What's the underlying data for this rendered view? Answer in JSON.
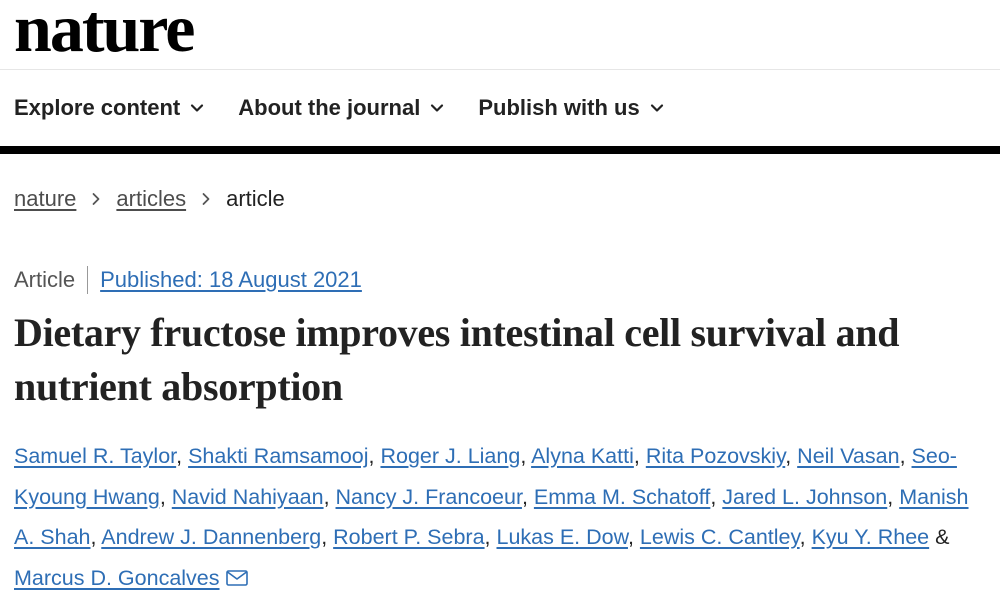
{
  "brand": {
    "logo": "nature"
  },
  "nav": {
    "items": [
      {
        "label": "Explore content",
        "icon": "chevron-down-icon"
      },
      {
        "label": "About the journal",
        "icon": "chevron-down-icon"
      },
      {
        "label": "Publish with us",
        "icon": "chevron-down-icon"
      }
    ]
  },
  "breadcrumb": {
    "items": [
      "nature",
      "articles"
    ],
    "current": "article"
  },
  "article": {
    "type": "Article",
    "published": "Published: 18 August 2021",
    "title": "Dietary fructose improves intestinal cell survival and nutrient absorption",
    "authors": [
      "Samuel R. Taylor",
      "Shakti Ramsamooj",
      "Roger J. Liang",
      "Alyna Katti",
      "Rita Pozovskiy",
      "Neil Vasan",
      "Seo-Kyoung Hwang",
      "Navid Nahiyaan",
      "Nancy J. Francoeur",
      "Emma M. Schatoff",
      "Jared L. Johnson",
      "Manish A. Shah",
      "Andrew J. Dannenberg",
      "Robert P. Sebra",
      "Lukas E. Dow",
      "Lewis C. Cantley",
      "Kyu Y. Rhee",
      "Marcus D. Goncalves"
    ],
    "authors_sep": ", ",
    "authors_last_sep": " & ",
    "contact_icon": "envelope-icon"
  },
  "colors": {
    "link": "#2e6eb5",
    "text": "#222222",
    "rule": "#000000"
  }
}
